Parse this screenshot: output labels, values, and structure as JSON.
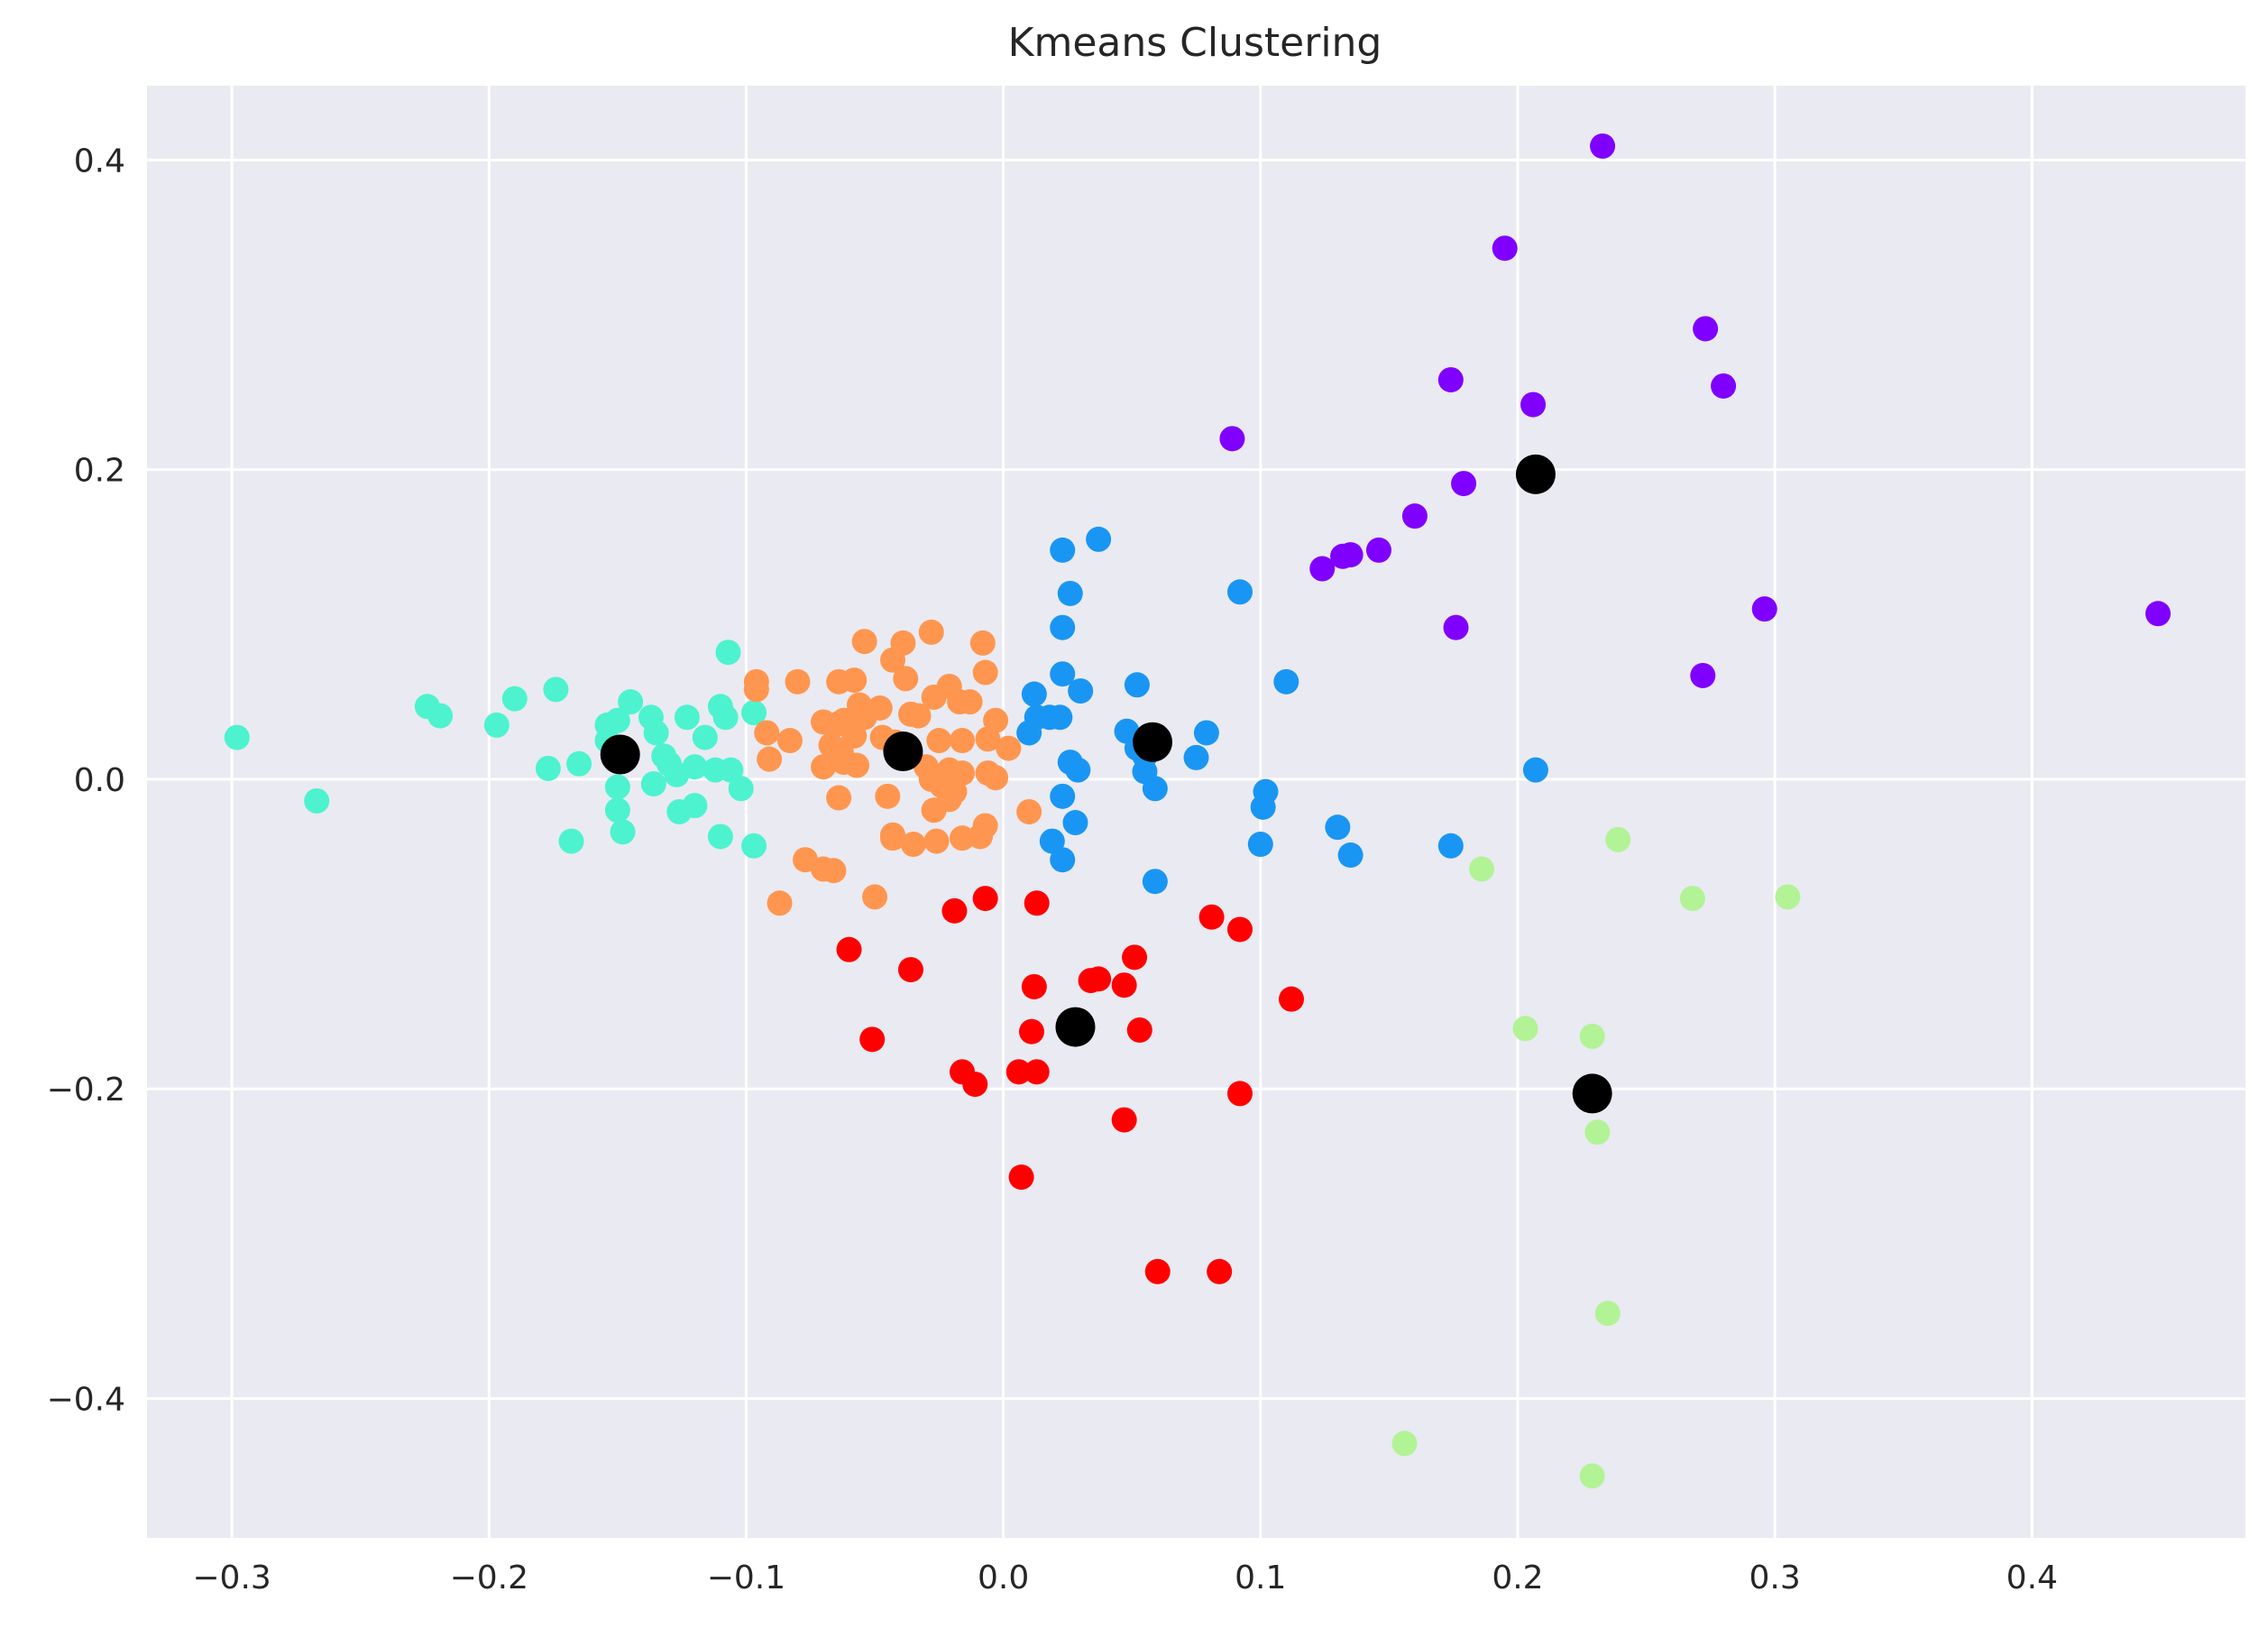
{
  "chart_data": {
    "type": "scatter",
    "title": "Kmeans Clustering",
    "xlabel": "",
    "ylabel": "",
    "xlim": [
      -0.333,
      0.483
    ],
    "ylim": [
      -0.49,
      0.448
    ],
    "x_ticks": [
      -0.3,
      -0.2,
      -0.1,
      0.0,
      0.1,
      0.2,
      0.3,
      0.4
    ],
    "x_tick_labels": [
      "−0.3",
      "−0.2",
      "−0.1",
      "0.0",
      "0.1",
      "0.2",
      "0.3",
      "0.4"
    ],
    "y_ticks": [
      -0.4,
      -0.2,
      0.0,
      0.2,
      0.4
    ],
    "y_tick_labels": [
      "−0.4",
      "−0.2",
      "0.0",
      "0.2",
      "0.4"
    ],
    "grid": true,
    "colors": {
      "background": "#eaeaf2",
      "grid": "#ffffff",
      "centroid": "#000000"
    },
    "series": [
      {
        "color": "#8000ff",
        "points": [
          [
            0.233,
            0.409
          ],
          [
            0.195,
            0.343
          ],
          [
            0.273,
            0.291
          ],
          [
            0.28,
            0.254
          ],
          [
            0.174,
            0.258
          ],
          [
            0.206,
            0.242
          ],
          [
            0.089,
            0.22
          ],
          [
            0.179,
            0.191
          ],
          [
            0.16,
            0.17
          ],
          [
            0.146,
            0.148
          ],
          [
            0.135,
            0.145
          ],
          [
            0.132,
            0.144
          ],
          [
            0.124,
            0.136
          ],
          [
            0.296,
            0.11
          ],
          [
            0.449,
            0.107
          ],
          [
            0.176,
            0.098
          ],
          [
            0.272,
            0.067
          ]
        ]
      },
      {
        "color": "#1996f3",
        "points": [
          [
            0.037,
            0.155
          ],
          [
            0.023,
            0.148
          ],
          [
            0.026,
            0.12
          ],
          [
            0.092,
            0.121
          ],
          [
            0.023,
            0.098
          ],
          [
            0.023,
            0.068
          ],
          [
            0.052,
            0.061
          ],
          [
            0.11,
            0.063
          ],
          [
            0.03,
            0.057
          ],
          [
            0.012,
            0.055
          ],
          [
            0.022,
            0.04
          ],
          [
            0.018,
            0.04
          ],
          [
            0.013,
            0.04
          ],
          [
            0.01,
            0.03
          ],
          [
            0.048,
            0.031
          ],
          [
            0.079,
            0.03
          ],
          [
            0.052,
            0.02
          ],
          [
            0.055,
            0.015
          ],
          [
            0.075,
            0.014
          ],
          [
            0.026,
            0.011
          ],
          [
            0.029,
            0.006
          ],
          [
            0.055,
            0.005
          ],
          [
            0.207,
            0.006
          ],
          [
            0.059,
            -0.006
          ],
          [
            0.102,
            -0.008
          ],
          [
            0.023,
            -0.011
          ],
          [
            0.101,
            -0.018
          ],
          [
            0.028,
            -0.028
          ],
          [
            0.13,
            -0.031
          ],
          [
            0.019,
            -0.04
          ],
          [
            0.1,
            -0.042
          ],
          [
            0.174,
            -0.043
          ],
          [
            0.135,
            -0.049
          ],
          [
            0.023,
            -0.052
          ],
          [
            0.059,
            -0.066
          ]
        ]
      },
      {
        "color": "#4df3ce",
        "points": [
          [
            -0.298,
            0.027
          ],
          [
            -0.267,
            -0.014
          ],
          [
            -0.224,
            0.047
          ],
          [
            -0.219,
            0.041
          ],
          [
            -0.197,
            0.035
          ],
          [
            -0.19,
            0.052
          ],
          [
            -0.174,
            0.058
          ],
          [
            -0.177,
            0.007
          ],
          [
            -0.165,
            0.01
          ],
          [
            -0.168,
            -0.04
          ],
          [
            -0.154,
            0.035
          ],
          [
            -0.15,
            0.038
          ],
          [
            -0.154,
            0.025
          ],
          [
            -0.145,
            0.05
          ],
          [
            -0.15,
            -0.005
          ],
          [
            -0.15,
            -0.02
          ],
          [
            -0.148,
            -0.034
          ],
          [
            -0.137,
            0.04
          ],
          [
            -0.135,
            0.03
          ],
          [
            -0.132,
            0.015
          ],
          [
            -0.13,
            0.01
          ],
          [
            -0.127,
            0.003
          ],
          [
            -0.123,
            0.04
          ],
          [
            -0.12,
            0.008
          ],
          [
            -0.12,
            -0.017
          ],
          [
            -0.126,
            -0.021
          ],
          [
            -0.136,
            -0.003
          ],
          [
            -0.116,
            0.027
          ],
          [
            -0.11,
            0.047
          ],
          [
            -0.108,
            0.04
          ],
          [
            -0.107,
            0.082
          ],
          [
            -0.112,
            0.006
          ],
          [
            -0.106,
            0.006
          ],
          [
            -0.102,
            -0.006
          ],
          [
            -0.097,
            0.043
          ],
          [
            -0.11,
            -0.037
          ],
          [
            -0.097,
            -0.043
          ]
        ]
      },
      {
        "color": "#b2f396",
        "points": [
          [
            0.239,
            -0.039
          ],
          [
            0.186,
            -0.058
          ],
          [
            0.305,
            -0.076
          ],
          [
            0.268,
            -0.077
          ],
          [
            0.203,
            -0.161
          ],
          [
            0.229,
            -0.166
          ],
          [
            0.231,
            -0.228
          ],
          [
            0.235,
            -0.345
          ],
          [
            0.156,
            -0.429
          ],
          [
            0.229,
            -0.45
          ]
        ]
      },
      {
        "color": "#ff964f",
        "points": [
          [
            -0.028,
            0.095
          ],
          [
            -0.054,
            0.089
          ],
          [
            -0.039,
            0.088
          ],
          [
            -0.008,
            0.088
          ],
          [
            -0.043,
            0.077
          ],
          [
            -0.007,
            0.069
          ],
          [
            -0.096,
            0.063
          ],
          [
            -0.08,
            0.063
          ],
          [
            -0.064,
            0.063
          ],
          [
            -0.058,
            0.064
          ],
          [
            -0.038,
            0.065
          ],
          [
            -0.021,
            0.06
          ],
          [
            -0.096,
            0.058
          ],
          [
            -0.027,
            0.053
          ],
          [
            -0.017,
            0.05
          ],
          [
            -0.013,
            0.05
          ],
          [
            -0.056,
            0.048
          ],
          [
            -0.048,
            0.046
          ],
          [
            -0.036,
            0.042
          ],
          [
            -0.003,
            0.038
          ],
          [
            -0.054,
            0.04
          ],
          [
            -0.062,
            0.038
          ],
          [
            -0.07,
            0.037
          ],
          [
            -0.064,
            0.036
          ],
          [
            -0.033,
            0.041
          ],
          [
            -0.092,
            0.03
          ],
          [
            -0.083,
            0.025
          ],
          [
            -0.025,
            0.025
          ],
          [
            -0.016,
            0.025
          ],
          [
            -0.006,
            0.026
          ],
          [
            0.002,
            0.02
          ],
          [
            -0.058,
            0.028
          ],
          [
            -0.047,
            0.027
          ],
          [
            -0.042,
            0.024
          ],
          [
            -0.067,
            0.022
          ],
          [
            -0.063,
            0.017
          ],
          [
            -0.091,
            0.013
          ],
          [
            -0.062,
            0.011
          ],
          [
            -0.057,
            0.009
          ],
          [
            -0.07,
            0.008
          ],
          [
            -0.036,
            0.015
          ],
          [
            -0.03,
            0.008
          ],
          [
            -0.021,
            0.006
          ],
          [
            -0.016,
            0.004
          ],
          [
            -0.006,
            0.004
          ],
          [
            -0.003,
            0.001
          ],
          [
            -0.028,
            0.0
          ],
          [
            -0.024,
            -0.004
          ],
          [
            -0.019,
            -0.008
          ],
          [
            -0.021,
            -0.013
          ],
          [
            -0.045,
            -0.011
          ],
          [
            -0.064,
            -0.012
          ],
          [
            -0.027,
            -0.02
          ],
          [
            -0.016,
            -0.038
          ],
          [
            -0.009,
            -0.037
          ],
          [
            -0.007,
            -0.03
          ],
          [
            -0.043,
            -0.036
          ],
          [
            -0.035,
            -0.042
          ],
          [
            -0.026,
            -0.04
          ],
          [
            0.01,
            -0.021
          ],
          [
            -0.077,
            -0.052
          ],
          [
            -0.07,
            -0.058
          ],
          [
            -0.066,
            -0.059
          ],
          [
            -0.087,
            -0.08
          ],
          [
            -0.05,
            -0.076
          ],
          [
            -0.043,
            -0.038
          ]
        ]
      },
      {
        "color": "#ff0000",
        "points": [
          [
            -0.007,
            -0.077
          ],
          [
            -0.019,
            -0.085
          ],
          [
            0.013,
            -0.08
          ],
          [
            0.081,
            -0.089
          ],
          [
            0.092,
            -0.097
          ],
          [
            -0.06,
            -0.11
          ],
          [
            -0.036,
            -0.123
          ],
          [
            0.051,
            -0.115
          ],
          [
            0.012,
            -0.134
          ],
          [
            0.034,
            -0.13
          ],
          [
            0.037,
            -0.129
          ],
          [
            0.047,
            -0.133
          ],
          [
            0.112,
            -0.142
          ],
          [
            -0.051,
            -0.168
          ],
          [
            0.011,
            -0.163
          ],
          [
            0.053,
            -0.162
          ],
          [
            -0.016,
            -0.189
          ],
          [
            0.006,
            -0.189
          ],
          [
            0.013,
            -0.189
          ],
          [
            -0.011,
            -0.197
          ],
          [
            0.092,
            -0.203
          ],
          [
            0.047,
            -0.22
          ],
          [
            0.007,
            -0.257
          ],
          [
            0.06,
            -0.318
          ],
          [
            0.084,
            -0.318
          ]
        ]
      }
    ],
    "centroids": [
      [
        0.207,
        0.197
      ],
      [
        0.058,
        0.024
      ],
      [
        -0.149,
        0.016
      ],
      [
        -0.039,
        0.018
      ],
      [
        0.028,
        -0.16
      ],
      [
        0.229,
        -0.203
      ]
    ]
  }
}
